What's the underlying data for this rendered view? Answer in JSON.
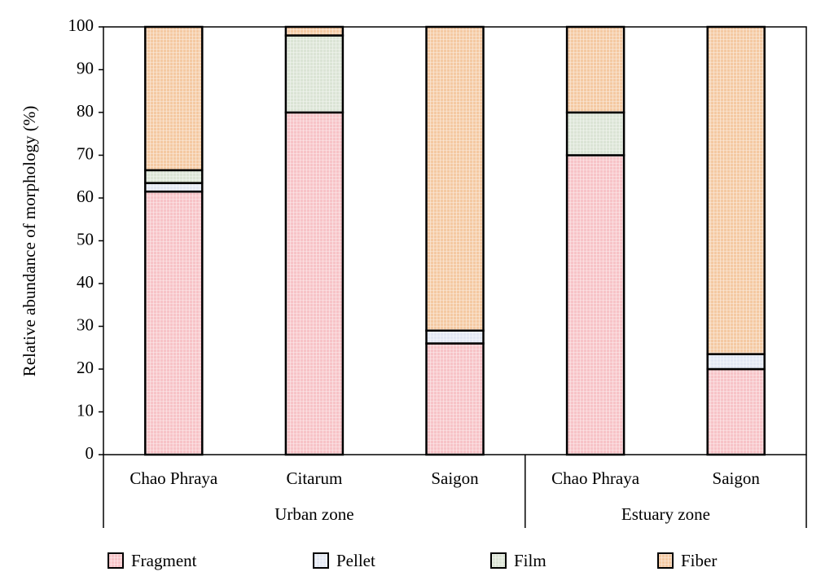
{
  "chart_data": {
    "type": "stacked_bar",
    "y_label": "Relative abundance of morphology (%)",
    "groups": [
      {
        "name": "Urban zone",
        "categories": [
          "Chao Phraya",
          "Citarum",
          "Saigon"
        ]
      },
      {
        "name": "Estuary zone",
        "categories": [
          "Chao Phraya",
          "Saigon"
        ]
      }
    ],
    "series": [
      {
        "name": "Fragment",
        "color": "#f7c3c7",
        "values": [
          61.5,
          80,
          26,
          70,
          20
        ]
      },
      {
        "name": "Pellet",
        "color": "#e3e8f3",
        "values": [
          2,
          0,
          3,
          0,
          3.5
        ]
      },
      {
        "name": "Film",
        "color": "#dbe4d5",
        "values": [
          3,
          18,
          0,
          10,
          0
        ]
      },
      {
        "name": "Fiber",
        "color": "#f4c9a2",
        "values": [
          33.5,
          2,
          71,
          20,
          76.5
        ]
      }
    ],
    "ylim": [
      0,
      100
    ],
    "yticks": [
      0,
      10,
      20,
      30,
      40,
      50,
      60,
      70,
      80,
      90,
      100
    ]
  }
}
